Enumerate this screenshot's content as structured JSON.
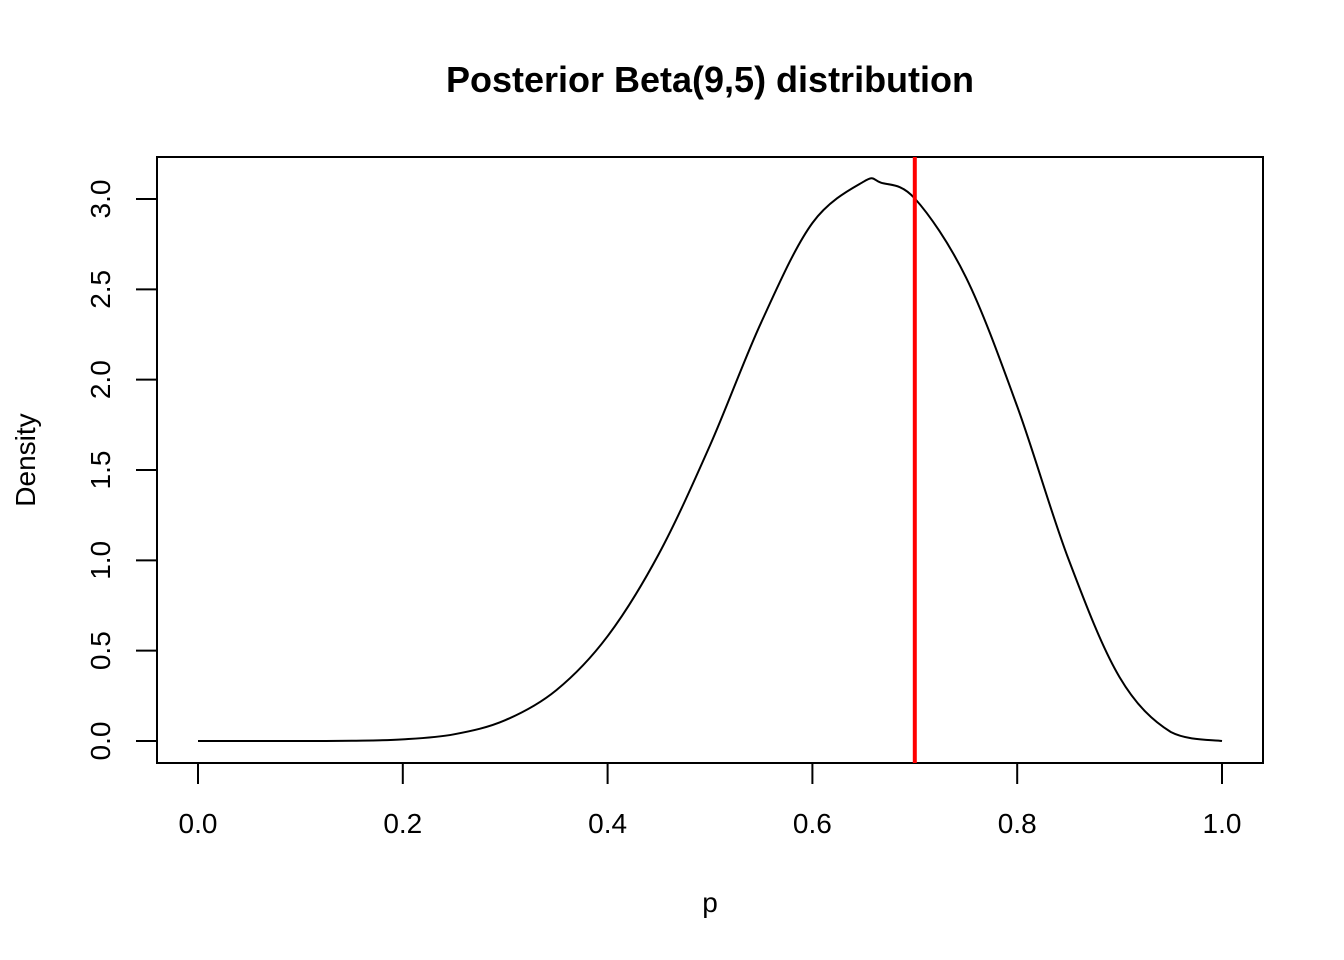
{
  "chart_data": {
    "type": "line",
    "title": "Posterior Beta(9,5) distribution",
    "xlabel": "p",
    "ylabel": "Density",
    "xlim": [
      0,
      1
    ],
    "ylim": [
      0,
      3.1
    ],
    "x_ticks": [
      "0.0",
      "0.2",
      "0.4",
      "0.6",
      "0.8",
      "1.0"
    ],
    "y_ticks": [
      "0.0",
      "0.5",
      "1.0",
      "1.5",
      "2.0",
      "2.5",
      "3.0"
    ],
    "grid": false,
    "legend": "none",
    "series": [
      {
        "color": "#000000",
        "x": [
          0.0,
          0.05,
          0.1,
          0.15,
          0.2,
          0.25,
          0.3,
          0.35,
          0.4,
          0.45,
          0.5,
          0.55,
          0.6,
          0.65,
          0.667,
          0.7,
          0.75,
          0.8,
          0.85,
          0.9,
          0.95,
          1.0
        ],
        "y": [
          0.0,
          0.0,
          0.0,
          0.001,
          0.009,
          0.037,
          0.115,
          0.282,
          0.58,
          1.035,
          1.636,
          2.317,
          2.867,
          3.096,
          3.09,
          3.003,
          2.566,
          1.852,
          1.008,
          0.353,
          0.05,
          0.0
        ]
      }
    ],
    "vline": {
      "x": 0.7,
      "color": "#ff0000"
    }
  }
}
